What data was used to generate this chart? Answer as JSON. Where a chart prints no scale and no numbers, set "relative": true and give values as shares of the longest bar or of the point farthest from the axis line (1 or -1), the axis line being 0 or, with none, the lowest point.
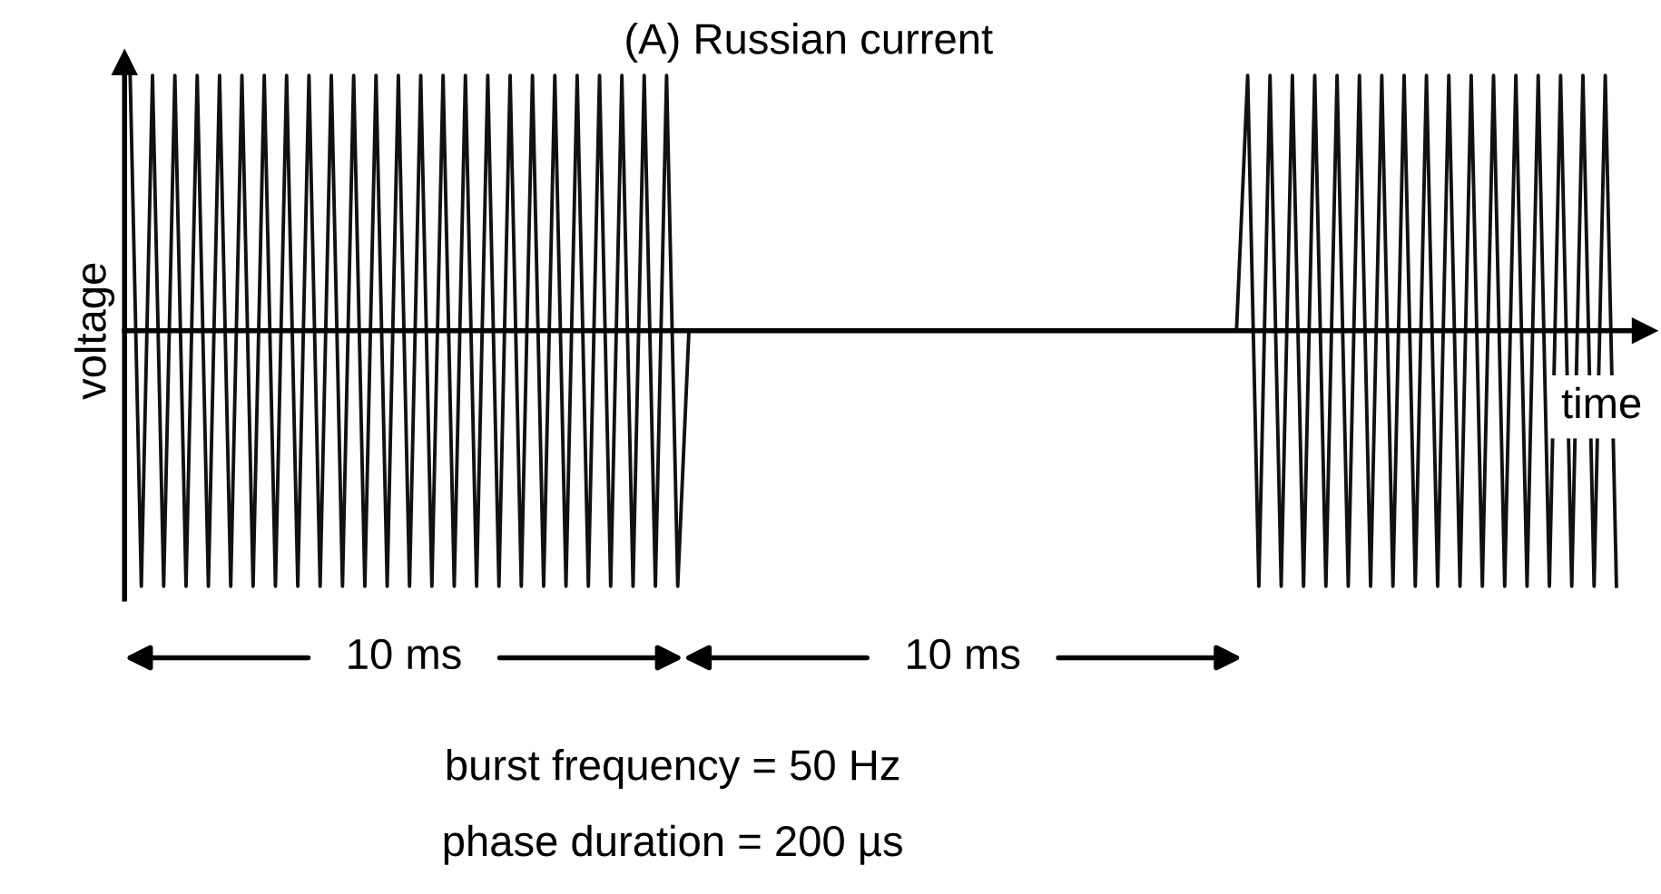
{
  "chart_data": {
    "type": "line",
    "relative": true,
    "title": "(A) Russian current",
    "xlabel": "time",
    "ylabel": "voltage",
    "categories": [
      null,
      null,
      null,
      null,
      null,
      null,
      null,
      null,
      null,
      null,
      null,
      null,
      null,
      null,
      null,
      null,
      null,
      null,
      null,
      null,
      null,
      null,
      null,
      null,
      null,
      null,
      null,
      null,
      null,
      null,
      null,
      null,
      null,
      null,
      null,
      null,
      null,
      null,
      null,
      null,
      null,
      null,
      null,
      null,
      null,
      null,
      null,
      null,
      null,
      null,
      null,
      null,
      null,
      null,
      null,
      null,
      null,
      null,
      null,
      null,
      null,
      null,
      null,
      null,
      null,
      null,
      null,
      null,
      null,
      null,
      null,
      null,
      null,
      null,
      null,
      null,
      null,
      null,
      null,
      null,
      null,
      null,
      null,
      null,
      null,
      null,
      null,
      null,
      null,
      null,
      null,
      null,
      null,
      null,
      null,
      null,
      null,
      null,
      null,
      null,
      null,
      null,
      null,
      null,
      null,
      null,
      null,
      null,
      null,
      null,
      null,
      null,
      null,
      null,
      null,
      null,
      null,
      null,
      null,
      null,
      null,
      null,
      null,
      null,
      null,
      null,
      null,
      null,
      null,
      null,
      null,
      null,
      null,
      null
    ],
    "series": [
      {
        "color": "#111111",
        "values": [
          1,
          -1,
          1,
          -1,
          1,
          -1,
          1,
          -1,
          1,
          -1,
          1,
          -1,
          1,
          -1,
          1,
          -1,
          1,
          -1,
          1,
          -1,
          1,
          -1,
          1,
          -1,
          1,
          -1,
          1,
          -1,
          1,
          -1,
          1,
          -1,
          1,
          -1,
          1,
          -1,
          1,
          -1,
          1,
          -1,
          1,
          -1,
          1,
          -1,
          1,
          -1,
          1,
          -1,
          1,
          -1,
          0,
          0,
          0,
          0,
          0,
          0,
          0,
          0,
          0,
          0,
          0,
          0,
          0,
          0,
          0,
          0,
          0,
          0,
          0,
          0,
          0,
          0,
          0,
          0,
          0,
          0,
          0,
          0,
          0,
          0,
          0,
          0,
          0,
          0,
          0,
          0,
          0,
          0,
          0,
          0,
          0,
          0,
          0,
          0,
          0,
          0,
          0,
          0,
          0,
          0,
          1,
          -1,
          1,
          -1,
          1,
          -1,
          1,
          -1,
          1,
          -1,
          1,
          -1,
          1,
          -1,
          1,
          -1,
          1,
          -1,
          1,
          -1,
          1,
          -1,
          1,
          -1,
          1,
          -1,
          1,
          -1,
          1,
          -1,
          1,
          -1,
          1,
          -1
        ]
      }
    ],
    "marker": "none",
    "line_style": "solid",
    "legend": false,
    "tick_labels": false,
    "annotations": [
      "10 ms",
      "10 ms",
      "burst frequency = 50 Hz",
      "phase duration = 200 µs"
    ]
  }
}
